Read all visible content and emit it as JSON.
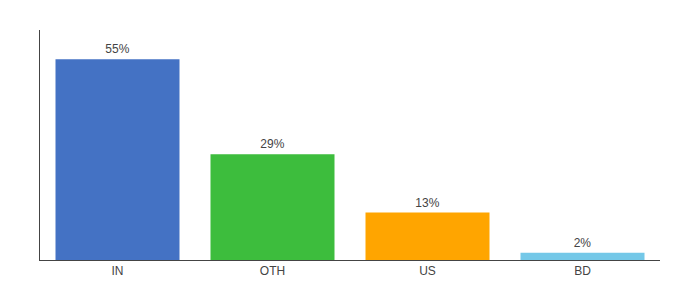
{
  "chart_data": {
    "type": "bar",
    "categories": [
      "IN",
      "OTH",
      "US",
      "BD"
    ],
    "values": [
      55,
      29,
      13,
      2
    ],
    "value_labels": [
      "55%",
      "29%",
      "13%",
      "2%"
    ],
    "colors": [
      "#4472C4",
      "#3DBD3D",
      "#FFA500",
      "#74C8E8"
    ],
    "ylim": [
      0,
      63
    ],
    "grid": false,
    "data_labels": true,
    "tick_labels": "x"
  }
}
